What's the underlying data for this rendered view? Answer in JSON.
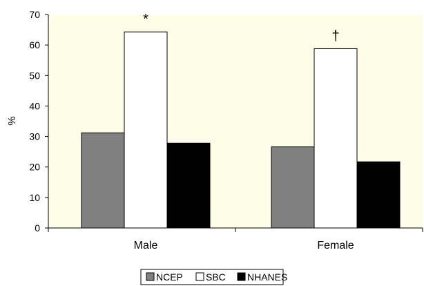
{
  "chart_data": {
    "type": "bar",
    "categories": [
      "Male",
      "Female"
    ],
    "series": [
      {
        "name": "NCEP",
        "values": [
          31.2,
          26.6
        ],
        "color": "#808080"
      },
      {
        "name": "SBC",
        "values": [
          64.3,
          58.8
        ],
        "color": "#ffffff"
      },
      {
        "name": "NHANES",
        "values": [
          27.8,
          21.7
        ],
        "color": "#000000"
      }
    ],
    "annotations": [
      {
        "text": "*",
        "category": "Male",
        "series": "SBC"
      },
      {
        "text": "†",
        "category": "Female",
        "series": "SBC"
      }
    ],
    "title": "",
    "xlabel": "",
    "ylabel": "%",
    "ylim": [
      0,
      70
    ],
    "yticks": [
      0,
      10,
      20,
      30,
      40,
      50,
      60,
      70
    ],
    "grid": false,
    "legend": "bottom-center",
    "plot_background": "#fdfde8"
  }
}
